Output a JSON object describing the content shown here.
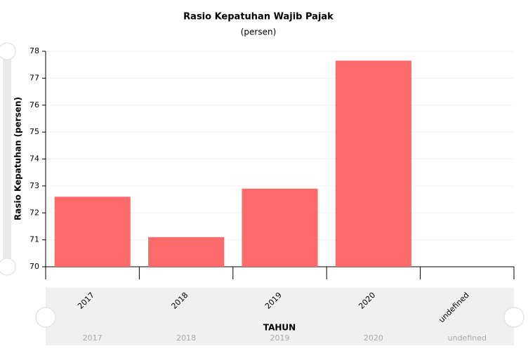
{
  "chart_data": {
    "type": "bar",
    "title": "Rasio Kepatuhan Wajib Pajak",
    "subtitle": "(persen)",
    "y_label": "Rasio Kepatuhan (persen)",
    "x_label": "TAHUN",
    "categories": [
      "2017",
      "2018",
      "2019",
      "2020",
      "undefined"
    ],
    "values": [
      72.6,
      71.1,
      72.9,
      77.65,
      null
    ],
    "color": "#fc6a6a",
    "ylim": [
      70,
      78
    ],
    "yticks": [
      70,
      71,
      72,
      73,
      74,
      75,
      76,
      77,
      78
    ],
    "grid": true
  }
}
